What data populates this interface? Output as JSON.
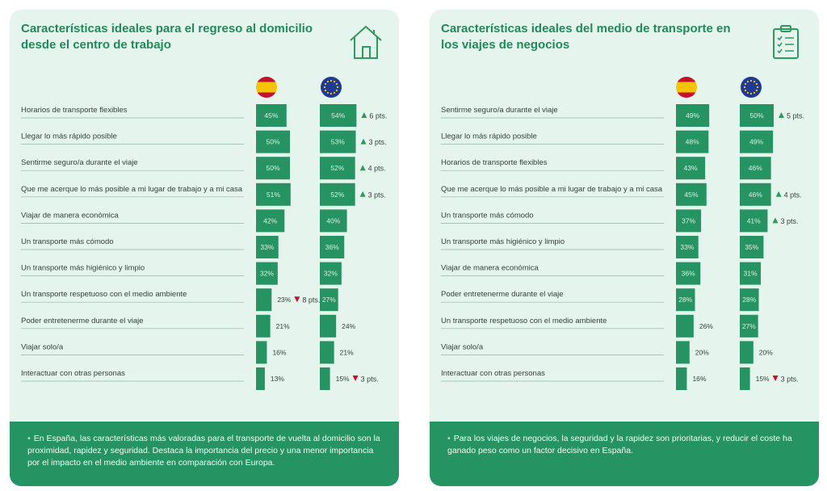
{
  "chart_data": [
    {
      "type": "bar",
      "title": "Características ideales para el regreso al domicilio desde el centro de trabajo",
      "categories": [
        "Horarios de transporte flexibles",
        "Llegar lo más rápido posible",
        "Sentirme seguro/a durante el viaje",
        "Que me acerque lo más posible a mi lugar de trabajo y a mi casa",
        "Viajar de manera económica",
        "Un transporte más cómodo",
        "Un transporte más higiénico y limpio",
        "Un transporte respetuoso con el medio ambiente",
        "Poder entretenerme durante el viaje",
        "Viajar solo/a",
        "Interactuar con otras personas"
      ],
      "series": [
        {
          "values": [
            45,
            50,
            50,
            51,
            42,
            33,
            32,
            23,
            21,
            16,
            13
          ]
        },
        {
          "values": [
            54,
            53,
            52,
            52,
            40,
            36,
            32,
            27,
            24,
            21,
            15
          ]
        }
      ],
      "value_labels": [
        [
          "45%",
          "50%",
          "50%",
          "51%",
          "42%",
          "33%",
          "32%",
          "23%",
          "21%",
          "16%",
          "13%"
        ],
        [
          "54%",
          "53%",
          "52%",
          "52%",
          "40%",
          "36%",
          "32%",
          "27%",
          "24%",
          "21%",
          "15%"
        ]
      ],
      "deltas": [
        {
          "series": 1,
          "row": 0,
          "dir": "up",
          "label": "6 pts."
        },
        {
          "series": 1,
          "row": 1,
          "dir": "up",
          "label": "3 pts."
        },
        {
          "series": 1,
          "row": 2,
          "dir": "up",
          "label": "4 pts."
        },
        {
          "series": 1,
          "row": 3,
          "dir": "up",
          "label": "3 pts."
        },
        {
          "series": 0,
          "row": 7,
          "dir": "down",
          "label": "8 pts."
        },
        {
          "series": 1,
          "row": 10,
          "dir": "down",
          "label": "3 pts."
        }
      ],
      "footer": "En España, las características más valoradas para el transporte de vuelta al domicilio son la proximidad, rapidez y seguridad. Destaca la importancia del precio y una menor importancia por el impacto en el medio ambiente en comparación con Europa.",
      "icon": "house-icon"
    },
    {
      "type": "bar",
      "title": "Características ideales del medio de transporte en los viajes de negocios",
      "categories": [
        "Sentirme seguro/a durante el viaje",
        "Llegar lo más rápido posible",
        "Horarios de transporte flexibles",
        "Que me acerque lo más posible a mi lugar de trabajo y a mi casa",
        "Un transporte más cómodo",
        "Un transporte más higiénico y limpio",
        "Viajar de manera económica",
        "Poder entretenerme durante el viaje",
        "Un transporte respetuoso con el medio ambiente",
        "Viajar solo/a",
        "Interactuar con otras personas"
      ],
      "series": [
        {
          "values": [
            49,
            48,
            43,
            45,
            37,
            33,
            36,
            28,
            26,
            20,
            16
          ]
        },
        {
          "values": [
            50,
            49,
            46,
            46,
            41,
            35,
            31,
            28,
            27,
            20,
            15
          ]
        }
      ],
      "value_labels": [
        [
          "49%",
          "48%",
          "43%",
          "45%",
          "37%",
          "33%",
          "36%",
          "28%",
          "26%",
          "20%",
          "16%"
        ],
        [
          "50%",
          "49%",
          "46%",
          "46%",
          "41%",
          "35%",
          "31%",
          "28%",
          "27%",
          "20%",
          "15%"
        ]
      ],
      "deltas": [
        {
          "series": 1,
          "row": 0,
          "dir": "up",
          "label": "5 pts."
        },
        {
          "series": 1,
          "row": 3,
          "dir": "up",
          "label": "4 pts."
        },
        {
          "series": 1,
          "row": 4,
          "dir": "up",
          "label": "3 pts."
        },
        {
          "series": 1,
          "row": 10,
          "dir": "down",
          "label": "3 pts."
        }
      ],
      "footer": "Para los viajes de negocios, la seguridad y la rapidez son prioritarias, y reducir el coste ha ganado peso como un factor decisivo en España.",
      "icon": "clipboard-checklist-icon"
    }
  ],
  "colors": {
    "accent": "#1f8a5b",
    "bar": "#259462",
    "panel_bg": "#e6f4ee",
    "up": "#2e9a5c",
    "down": "#c8102e",
    "spain_red": "#c8102e",
    "spain_yellow": "#f6c400",
    "eu_blue": "#1f3a93",
    "eu_star": "#ffcc00"
  },
  "flags": [
    "spain-flag-icon",
    "eu-flag-icon"
  ]
}
